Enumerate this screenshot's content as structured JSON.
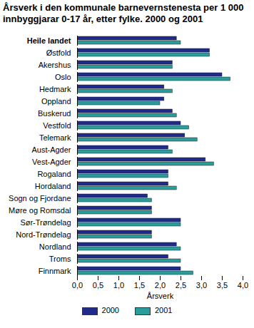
{
  "chart_data": {
    "type": "bar",
    "orientation": "horizontal",
    "title": "Årsverk i den kommunale barnevernstenesta per 1 000 innbyggjarar 0-17 år, etter fylke. 2000 og 2001",
    "x_label": "Årsverk",
    "categories": [
      "Heile landet",
      "Østfold",
      "Akershus",
      "Oslo",
      "Hedmark",
      "Oppland",
      "Buskerud",
      "Vestfold",
      "Telemark",
      "Aust-Agder",
      "Vest-Agder",
      "Rogaland",
      "Hordaland",
      "Sogn og Fjordane",
      "Møre og Romsdal",
      "Sør-Trøndelag",
      "Nord-Trøndelag",
      "Nordland",
      "Troms",
      "Finnmark"
    ],
    "series": [
      {
        "name": "2000",
        "color": "#1f2a8a",
        "values": [
          2.4,
          3.2,
          2.3,
          3.5,
          2.1,
          2.1,
          2.3,
          2.5,
          2.6,
          2.2,
          3.1,
          2.2,
          2.2,
          1.7,
          1.8,
          2.5,
          1.8,
          2.4,
          2.2,
          2.5
        ]
      },
      {
        "name": "2001",
        "color": "#2a9d9b",
        "values": [
          2.5,
          3.2,
          2.3,
          3.7,
          2.3,
          2.0,
          2.4,
          2.7,
          2.9,
          2.3,
          3.3,
          2.2,
          2.4,
          1.8,
          1.8,
          2.5,
          1.8,
          2.5,
          2.5,
          2.8
        ]
      }
    ],
    "xlim": [
      0,
      4
    ],
    "xticks": [
      {
        "value": 0,
        "label": "0,0"
      },
      {
        "value": 0.5,
        "label": "0,5"
      },
      {
        "value": 1,
        "label": "1,0"
      },
      {
        "value": 1.5,
        "label": "1,5"
      },
      {
        "value": 2,
        "label": "2,0"
      },
      {
        "value": 2.5,
        "label": "2,5"
      },
      {
        "value": 3,
        "label": "3,0"
      },
      {
        "value": 3.5,
        "label": "3,5"
      },
      {
        "value": 4,
        "label": "4,0"
      }
    ],
    "grid": false,
    "legend": "bottom"
  }
}
